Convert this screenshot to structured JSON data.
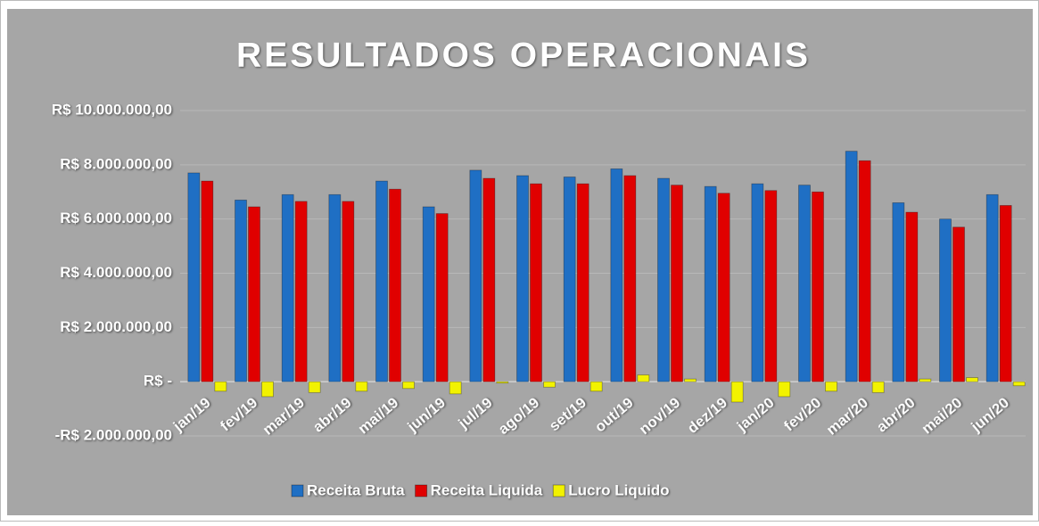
{
  "chart_data": {
    "type": "bar",
    "title": "RESULTADOS OPERACIONAIS",
    "categories": [
      "jan/19",
      "fev/19",
      "mar/19",
      "abr/19",
      "mai/19",
      "jun/19",
      "jul/19",
      "ago/19",
      "set/19",
      "out/19",
      "nov/19",
      "dez/19",
      "jan/20",
      "fev/20",
      "mar/20",
      "abr/20",
      "mai/20",
      "jun/20"
    ],
    "series": [
      {
        "name": "Receita Bruta",
        "color": "#1f6fc4",
        "values": [
          7700000,
          6700000,
          6900000,
          6900000,
          7400000,
          6450000,
          7800000,
          7600000,
          7550000,
          7850000,
          7500000,
          7200000,
          7300000,
          7250000,
          8500000,
          6600000,
          6000000,
          6900000
        ]
      },
      {
        "name": "Receita Liquida",
        "color": "#e00000",
        "values": [
          7400000,
          6450000,
          6650000,
          6650000,
          7100000,
          6200000,
          7500000,
          7300000,
          7300000,
          7600000,
          7250000,
          6950000,
          7050000,
          7000000,
          8150000,
          6250000,
          5700000,
          6500000
        ]
      },
      {
        "name": "Lucro Liquido",
        "color": "#f2f200",
        "values": [
          -350000,
          -550000,
          -400000,
          -350000,
          -250000,
          -450000,
          -50000,
          -200000,
          -350000,
          250000,
          100000,
          -750000,
          -550000,
          -350000,
          -400000,
          100000,
          150000,
          -150000
        ]
      }
    ],
    "ylim": [
      -2000000,
      10000000
    ],
    "yticks": [
      {
        "value": -2000000,
        "label": "-R$ 2.000.000,00"
      },
      {
        "value": 0,
        "label": "R$ -"
      },
      {
        "value": 2000000,
        "label": "R$ 2.000.000,00"
      },
      {
        "value": 4000000,
        "label": "R$ 4.000.000,00"
      },
      {
        "value": 6000000,
        "label": "R$ 6.000.000,00"
      },
      {
        "value": 8000000,
        "label": "R$ 8.000.000,00"
      },
      {
        "value": 10000000,
        "label": "R$ 10.000.000,00"
      }
    ],
    "grid": true,
    "legend": "bottom"
  }
}
